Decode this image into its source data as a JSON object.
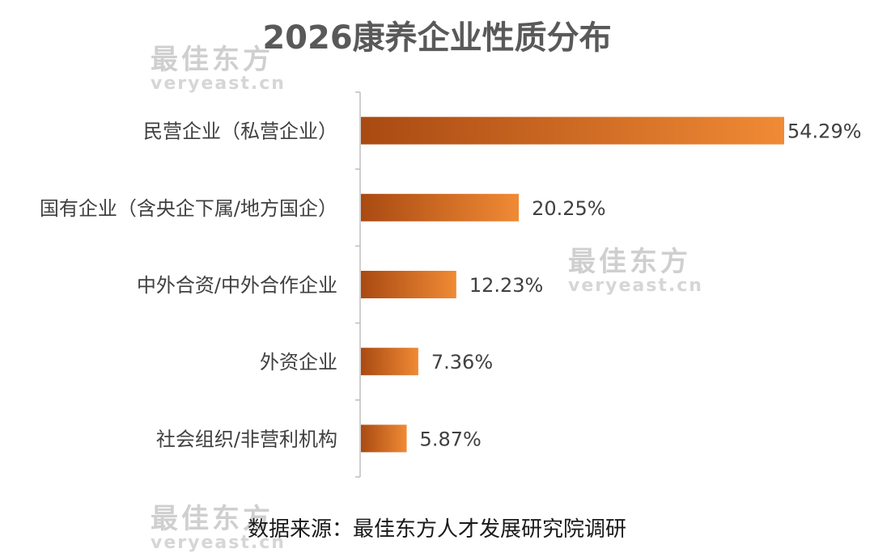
{
  "chart_data": {
    "type": "bar",
    "orientation": "horizontal",
    "title": "2026康养企业性质分布",
    "categories": [
      "民营企业（私营企业）",
      "国有企业（含央企下属/地方国企）",
      "中外合资/中外合作企业",
      "外资企业",
      "社会组织/非营利机构"
    ],
    "values": [
      54.29,
      20.25,
      12.23,
      7.36,
      5.87
    ],
    "value_labels": [
      "54.29%",
      "20.25%",
      "12.23%",
      "7.36%",
      "5.87%"
    ],
    "xlim": [
      0,
      54.29
    ],
    "grid": false,
    "bar_color": "#E8792B"
  },
  "source_text": "数据来源：最佳东方人才发展研究院调研",
  "watermark": {
    "cn": "最佳东方",
    "en": "veryeast.cn"
  }
}
